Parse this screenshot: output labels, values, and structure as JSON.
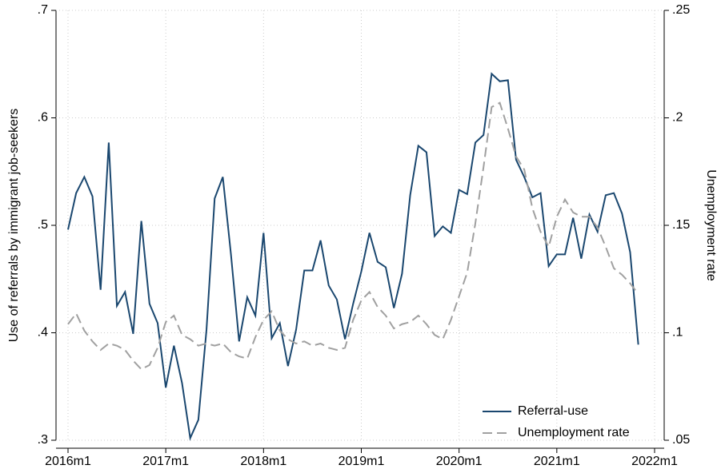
{
  "chart_data": {
    "type": "line",
    "y_label": "Use of referrals by immigrant job-seekers",
    "y2_label": "Unemployment rate",
    "categories": [
      "2016m1",
      null,
      null,
      null,
      null,
      null,
      null,
      null,
      null,
      null,
      null,
      null,
      "2017m1",
      null,
      null,
      null,
      null,
      null,
      null,
      null,
      null,
      null,
      null,
      null,
      "2018m1",
      null,
      null,
      null,
      null,
      null,
      null,
      null,
      null,
      null,
      null,
      null,
      "2019m1",
      null,
      null,
      null,
      null,
      null,
      null,
      null,
      null,
      null,
      null,
      null,
      "2020m1",
      null,
      null,
      null,
      null,
      null,
      null,
      null,
      null,
      null,
      null,
      null,
      "2021m1",
      null,
      null,
      null,
      null,
      null,
      null,
      null,
      null,
      null,
      null,
      null,
      "2022m1"
    ],
    "series": [
      {
        "name": "Referral-use",
        "color": "#1a476f",
        "dash": false,
        "values": [
          0.496,
          0.53,
          0.545,
          0.527,
          0.44,
          0.577,
          0.425,
          0.438,
          0.399,
          0.504,
          0.427,
          0.409,
          0.349,
          0.388,
          0.353,
          0.302,
          0.319,
          0.403,
          0.525,
          0.545,
          0.473,
          0.392,
          0.433,
          0.416,
          0.493,
          0.395,
          0.409,
          0.369,
          0.403,
          0.458,
          0.458,
          0.486,
          0.444,
          0.431,
          0.394,
          0.427,
          0.457,
          0.493,
          0.466,
          0.461,
          0.423,
          0.455,
          0.528,
          0.574,
          0.568,
          0.49,
          0.499,
          0.493,
          0.533,
          0.529,
          0.577,
          0.584,
          0.641,
          0.634,
          0.635,
          0.561,
          0.545,
          0.526,
          0.53,
          0.462,
          0.473,
          0.473,
          0.507,
          0.469,
          0.51,
          0.494,
          0.528,
          0.53,
          0.511,
          0.475,
          0.389,
          null,
          null
        ]
      },
      {
        "name": "Unemployment rate",
        "color": "#a0a0a0",
        "dash": true,
        "axis": "y2",
        "values": [
          0.104,
          0.109,
          0.101,
          0.096,
          0.092,
          0.095,
          0.094,
          0.092,
          0.087,
          0.083,
          0.085,
          0.093,
          0.105,
          0.108,
          0.099,
          0.097,
          0.094,
          0.095,
          0.094,
          0.095,
          0.091,
          0.089,
          0.088,
          0.098,
          0.106,
          0.11,
          0.101,
          0.097,
          0.095,
          0.096,
          0.094,
          0.095,
          0.093,
          0.092,
          0.093,
          0.106,
          0.115,
          0.119,
          0.112,
          0.108,
          0.102,
          0.104,
          0.105,
          0.108,
          0.104,
          0.099,
          0.097,
          0.106,
          0.117,
          0.128,
          0.151,
          0.177,
          0.205,
          0.207,
          0.195,
          0.182,
          0.176,
          0.158,
          0.147,
          0.14,
          0.154,
          0.162,
          0.156,
          0.154,
          0.154,
          0.149,
          0.14,
          0.13,
          0.127,
          0.123,
          0.118,
          null,
          null
        ]
      }
    ],
    "ylim": [
      0.3,
      0.7
    ],
    "yticks": [
      {
        "value": 0.3,
        "label": ".3"
      },
      {
        "value": 0.4,
        "label": ".4"
      },
      {
        "value": 0.5,
        "label": ".5"
      },
      {
        "value": 0.6,
        "label": ".6"
      },
      {
        "value": 0.7,
        "label": ".7"
      }
    ],
    "y2lim": [
      0.05,
      0.25
    ],
    "y2ticks": [
      {
        "value": 0.05,
        "label": ".05"
      },
      {
        "value": 0.1,
        "label": ".1"
      },
      {
        "value": 0.15,
        "label": ".15"
      },
      {
        "value": 0.2,
        "label": ".2"
      },
      {
        "value": 0.25,
        "label": ".25"
      }
    ],
    "grid": true,
    "legend": "bottom-right"
  }
}
